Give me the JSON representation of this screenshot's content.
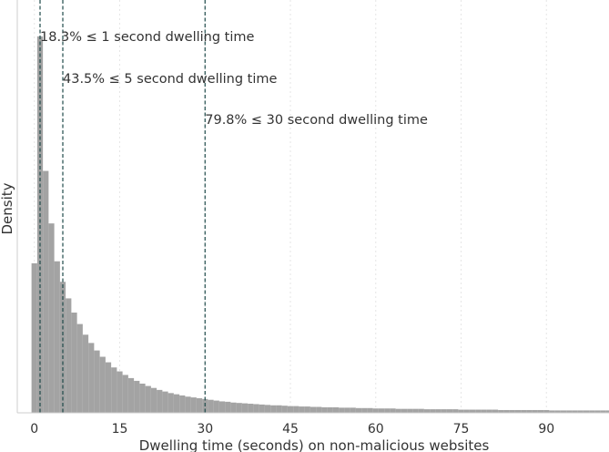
{
  "chart_data": {
    "type": "bar",
    "histogram": true,
    "xlabel": "Dwelling time (seconds) on non-malicious websites",
    "ylabel": "Density",
    "xlim": [
      -3,
      101
    ],
    "ylim": [
      0,
      1
    ],
    "x_ticks": [
      0,
      15,
      30,
      45,
      60,
      75,
      90
    ],
    "x_tick_labels": [
      "0",
      "15",
      "30",
      "45",
      "60",
      "75",
      "90"
    ],
    "grid": "vertical",
    "bar_color": "#a3a3a3",
    "line_color": "#1f4a4a",
    "bin_width": 1,
    "bin_start": -0.5,
    "values": [
      0.379,
      0.954,
      0.613,
      0.48,
      0.384,
      0.332,
      0.29,
      0.254,
      0.225,
      0.198,
      0.177,
      0.158,
      0.142,
      0.128,
      0.115,
      0.105,
      0.096,
      0.088,
      0.081,
      0.074,
      0.068,
      0.063,
      0.058,
      0.054,
      0.05,
      0.047,
      0.044,
      0.041,
      0.039,
      0.037,
      0.035,
      0.033,
      0.031,
      0.029,
      0.028,
      0.026,
      0.025,
      0.024,
      0.023,
      0.022,
      0.021,
      0.02,
      0.019,
      0.019,
      0.018,
      0.017,
      0.017,
      0.016,
      0.016,
      0.015,
      0.015,
      0.014,
      0.014,
      0.014,
      0.013,
      0.013,
      0.013,
      0.012,
      0.012,
      0.012,
      0.011,
      0.011,
      0.011,
      0.011,
      0.01,
      0.01,
      0.01,
      0.01,
      0.01,
      0.009,
      0.009,
      0.009,
      0.009,
      0.009,
      0.009,
      0.008,
      0.008,
      0.008,
      0.008,
      0.008,
      0.008,
      0.008,
      0.007,
      0.007,
      0.007,
      0.007,
      0.007,
      0.007,
      0.007,
      0.007,
      0.007,
      0.006,
      0.006,
      0.006,
      0.006,
      0.006,
      0.006,
      0.006,
      0.006,
      0.006,
      0.006,
      0.006,
      0.006
    ],
    "reference_lines": [
      {
        "x": 1,
        "label": "18.3% ≤ 1 second dwelling time"
      },
      {
        "x": 5,
        "label": "43.5% ≤ 5 second dwelling time"
      },
      {
        "x": 30,
        "label": "79.8% ≤ 30 second dwelling time"
      }
    ]
  }
}
